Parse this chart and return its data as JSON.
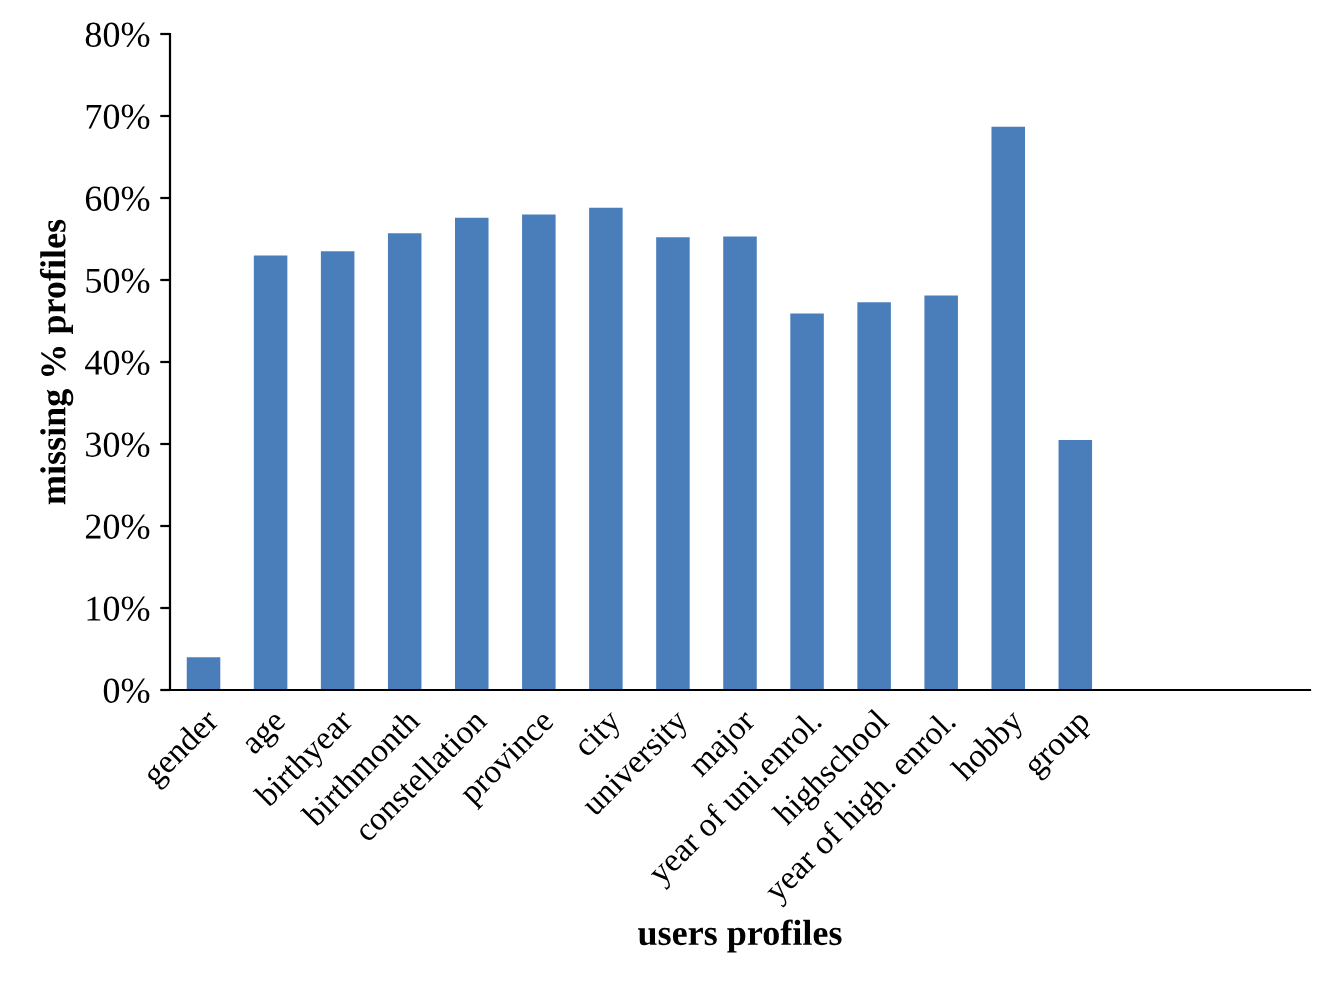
{
  "chart_data": {
    "type": "bar",
    "xlabel": "users profiles",
    "ylabel": "missing % profiles",
    "categories": [
      "gender",
      "age",
      "birthyear",
      "birthmonth",
      "constellation",
      "province",
      "city",
      "university",
      "major",
      "year of uni.enrol.",
      "highschool",
      "year of high. enrol.",
      "hobby",
      "group",
      null,
      null,
      null
    ],
    "values": [
      4,
      53,
      53.5,
      55.7,
      57.6,
      58,
      58.8,
      55.2,
      55.3,
      45.9,
      47.3,
      48.1,
      68.7,
      30.5,
      null,
      null,
      null
    ],
    "color": "#4a7ebb",
    "ylim": [
      0,
      80
    ],
    "yticks": [
      {
        "value": 0,
        "label": "0%"
      },
      {
        "value": 10,
        "label": "10%"
      },
      {
        "value": 20,
        "label": "20%"
      },
      {
        "value": 30,
        "label": "30%"
      },
      {
        "value": 40,
        "label": "40%"
      },
      {
        "value": 50,
        "label": "50%"
      },
      {
        "value": 60,
        "label": "60%"
      },
      {
        "value": 70,
        "label": "70%"
      },
      {
        "value": 80,
        "label": "80%"
      }
    ],
    "grid": false,
    "legend": false
  }
}
